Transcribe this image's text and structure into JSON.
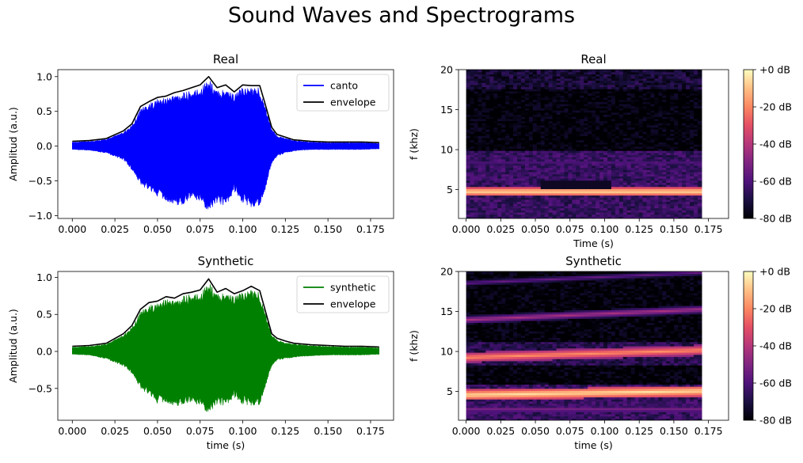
{
  "suptitle": "Sound Waves and Spectrograms",
  "colors": {
    "canto": "#0000ff",
    "synthetic": "#008000",
    "envelope": "#000000",
    "colormap": "magma"
  },
  "chart_data": [
    {
      "id": "wave_real",
      "type": "line",
      "title": "Real",
      "xlabel": "",
      "ylabel": "Amplitud (a.u.)",
      "xlim": [
        -0.0085,
        0.1885
      ],
      "ylim": [
        -1.04,
        1.1
      ],
      "xticks": [
        0.0,
        0.025,
        0.05,
        0.075,
        0.1,
        0.125,
        0.15,
        0.175
      ],
      "xtick_labels": [
        "0.000",
        "0.025",
        "0.050",
        "0.075",
        "0.100",
        "0.125",
        "0.150",
        "0.175"
      ],
      "yticks": [
        -1.0,
        -0.5,
        0.0,
        0.5,
        1.0
      ],
      "ytick_labels": [
        "−1.0",
        "−0.5",
        "0.0",
        "0.5",
        "1.0"
      ],
      "legend": {
        "placement": "upper right",
        "entries": [
          "canto",
          "envelope"
        ]
      },
      "series": [
        {
          "name": "canto",
          "kind": "fill_band",
          "color": "#0000ff",
          "x": [
            0.0,
            0.01,
            0.02,
            0.03,
            0.035,
            0.04,
            0.045,
            0.05,
            0.055,
            0.06,
            0.065,
            0.07,
            0.075,
            0.08,
            0.085,
            0.09,
            0.095,
            0.1,
            0.105,
            0.11,
            0.113,
            0.117,
            0.12,
            0.125,
            0.13,
            0.14,
            0.15,
            0.16,
            0.17,
            0.18
          ],
          "upper": [
            0.06,
            0.07,
            0.1,
            0.2,
            0.3,
            0.55,
            0.62,
            0.68,
            0.7,
            0.75,
            0.77,
            0.8,
            0.85,
            0.98,
            0.8,
            0.85,
            0.75,
            0.85,
            0.85,
            0.85,
            0.6,
            0.25,
            0.15,
            0.12,
            0.08,
            0.06,
            0.05,
            0.05,
            0.05,
            0.04
          ],
          "lower": [
            -0.05,
            -0.06,
            -0.1,
            -0.2,
            -0.35,
            -0.55,
            -0.65,
            -0.72,
            -0.78,
            -0.85,
            -0.85,
            -0.75,
            -0.82,
            -0.95,
            -0.82,
            -0.88,
            -0.65,
            -0.82,
            -0.9,
            -0.85,
            -0.65,
            -0.25,
            -0.15,
            -0.1,
            -0.07,
            -0.05,
            -0.05,
            -0.05,
            -0.05,
            -0.04
          ]
        },
        {
          "name": "envelope",
          "kind": "line",
          "color": "#000000",
          "x": [
            0.0,
            0.01,
            0.02,
            0.03,
            0.035,
            0.04,
            0.045,
            0.05,
            0.055,
            0.06,
            0.065,
            0.07,
            0.075,
            0.08,
            0.085,
            0.09,
            0.095,
            0.1,
            0.105,
            0.11,
            0.113,
            0.117,
            0.12,
            0.125,
            0.13,
            0.14,
            0.15,
            0.16,
            0.17,
            0.18
          ],
          "y": [
            0.07,
            0.08,
            0.11,
            0.22,
            0.32,
            0.57,
            0.64,
            0.7,
            0.72,
            0.77,
            0.8,
            0.84,
            0.88,
            1.0,
            0.84,
            0.88,
            0.78,
            0.88,
            0.87,
            0.87,
            0.62,
            0.27,
            0.17,
            0.13,
            0.09,
            0.07,
            0.06,
            0.06,
            0.06,
            0.05
          ]
        }
      ]
    },
    {
      "id": "wave_synth",
      "type": "line",
      "title": "Synthetic",
      "xlabel": "time (s)",
      "ylabel": "Amplitud (a.u.)",
      "xlim": [
        -0.0085,
        0.1885
      ],
      "ylim": [
        -0.93,
        1.08
      ],
      "xticks": [
        0.0,
        0.025,
        0.05,
        0.075,
        0.1,
        0.125,
        0.15,
        0.175
      ],
      "xtick_labels": [
        "0.000",
        "0.025",
        "0.050",
        "0.075",
        "0.100",
        "0.125",
        "0.150",
        "0.175"
      ],
      "yticks": [
        -0.5,
        0.0,
        0.5,
        1.0
      ],
      "ytick_labels": [
        "−0.5",
        "0.0",
        "0.5",
        "1.0"
      ],
      "legend": {
        "placement": "upper right",
        "entries": [
          "synthetic",
          "envelope"
        ]
      },
      "series": [
        {
          "name": "synthetic",
          "kind": "fill_band",
          "color": "#008000",
          "x": [
            0.0,
            0.01,
            0.02,
            0.03,
            0.035,
            0.04,
            0.045,
            0.05,
            0.055,
            0.06,
            0.065,
            0.07,
            0.075,
            0.08,
            0.085,
            0.09,
            0.095,
            0.1,
            0.105,
            0.11,
            0.113,
            0.117,
            0.12,
            0.125,
            0.13,
            0.14,
            0.15,
            0.16,
            0.17,
            0.18
          ],
          "upper": [
            0.06,
            0.07,
            0.1,
            0.22,
            0.33,
            0.55,
            0.63,
            0.65,
            0.72,
            0.7,
            0.75,
            0.78,
            0.8,
            0.95,
            0.78,
            0.82,
            0.75,
            0.8,
            0.85,
            0.8,
            0.55,
            0.22,
            0.16,
            0.12,
            0.1,
            0.08,
            0.07,
            0.06,
            0.06,
            0.05
          ],
          "lower": [
            -0.04,
            -0.05,
            -0.1,
            -0.2,
            -0.3,
            -0.5,
            -0.6,
            -0.7,
            -0.68,
            -0.75,
            -0.72,
            -0.7,
            -0.75,
            -0.85,
            -0.72,
            -0.75,
            -0.62,
            -0.72,
            -0.75,
            -0.72,
            -0.5,
            -0.2,
            -0.12,
            -0.1,
            -0.08,
            -0.06,
            -0.05,
            -0.05,
            -0.05,
            -0.04
          ]
        },
        {
          "name": "envelope",
          "kind": "line",
          "color": "#000000",
          "x": [
            0.0,
            0.01,
            0.02,
            0.03,
            0.035,
            0.04,
            0.045,
            0.05,
            0.055,
            0.06,
            0.065,
            0.07,
            0.075,
            0.08,
            0.085,
            0.09,
            0.095,
            0.1,
            0.105,
            0.11,
            0.113,
            0.117,
            0.12,
            0.125,
            0.13,
            0.14,
            0.15,
            0.16,
            0.17,
            0.18
          ],
          "y": [
            0.07,
            0.08,
            0.11,
            0.24,
            0.35,
            0.57,
            0.66,
            0.68,
            0.74,
            0.72,
            0.78,
            0.8,
            0.83,
            0.98,
            0.8,
            0.85,
            0.78,
            0.82,
            0.88,
            0.82,
            0.57,
            0.24,
            0.18,
            0.14,
            0.11,
            0.09,
            0.08,
            0.07,
            0.07,
            0.06
          ]
        }
      ]
    },
    {
      "id": "spec_real",
      "type": "heatmap",
      "title": "Real",
      "xlabel": "Time (s)",
      "ylabel": "f (khz)",
      "xlim": [
        -0.0055,
        0.1895
      ],
      "ylim": [
        1.4,
        20
      ],
      "data_x_extent": [
        0.0,
        0.17
      ],
      "xticks": [
        0.0,
        0.025,
        0.05,
        0.075,
        0.1,
        0.125,
        0.15,
        0.175
      ],
      "xtick_labels": [
        "0.000",
        "0.025",
        "0.050",
        "0.075",
        "0.100",
        "0.125",
        "0.150",
        "0.175"
      ],
      "yticks": [
        5,
        10,
        15,
        20
      ],
      "ytick_labels": [
        "5",
        "10",
        "15",
        "20"
      ],
      "db_range": [
        -80,
        0
      ],
      "bands": [
        {
          "f0": 4.8,
          "f1": 4.8,
          "level_db": -5,
          "width_khz": 0.25
        },
        {
          "f0": 8.4,
          "f1": 8.4,
          "level_db": -60,
          "width_khz": 0.4
        }
      ],
      "regions": [
        {
          "f_min": 1.4,
          "f_max": 10.0,
          "level_db": -65
        },
        {
          "f_min": 10.0,
          "f_max": 20.0,
          "level_db": -80
        },
        {
          "f_min": 17.5,
          "f_max": 20.0,
          "level_db": -72
        }
      ],
      "dark_patch": {
        "t0": 0.055,
        "t1": 0.105,
        "f_min": 5.2,
        "f_max": 6.3
      }
    },
    {
      "id": "spec_synth",
      "type": "heatmap",
      "title": "Synthetic",
      "xlabel": "time (s)",
      "ylabel": "f (khz)",
      "xlim": [
        -0.0055,
        0.1895
      ],
      "ylim": [
        1.4,
        20
      ],
      "data_x_extent": [
        0.0,
        0.17
      ],
      "xticks": [
        0.0,
        0.025,
        0.05,
        0.075,
        0.1,
        0.125,
        0.15,
        0.175
      ],
      "xtick_labels": [
        "0.000",
        "0.025",
        "0.050",
        "0.075",
        "0.100",
        "0.125",
        "0.150",
        "0.175"
      ],
      "yticks": [
        5,
        10,
        15,
        20
      ],
      "ytick_labels": [
        "5",
        "10",
        "15",
        "20"
      ],
      "db_range": [
        -80,
        0
      ],
      "bands": [
        {
          "f0": 4.6,
          "f1": 5.1,
          "level_db": -5,
          "width_khz": 0.3
        },
        {
          "f0": 9.3,
          "f1": 10.2,
          "level_db": -18,
          "width_khz": 0.3
        },
        {
          "f0": 14.0,
          "f1": 15.3,
          "level_db": -42,
          "width_khz": 0.25
        },
        {
          "f0": 18.6,
          "f1": 19.9,
          "level_db": -55,
          "width_khz": 0.25
        },
        {
          "f0": 2.8,
          "f1": 2.8,
          "level_db": -50,
          "width_khz": 0.3
        }
      ],
      "regions": [
        {
          "f_min": 1.4,
          "f_max": 6.0,
          "level_db": -65
        },
        {
          "f_min": 8.2,
          "f_max": 11.2,
          "level_db": -68
        },
        {
          "f_min": 6.0,
          "f_max": 8.2,
          "level_db": -80
        },
        {
          "f_min": 11.2,
          "f_max": 20.0,
          "level_db": -80
        }
      ]
    }
  ],
  "colorbars": [
    {
      "id": "cbar_real",
      "ticks": [
        0,
        -20,
        -40,
        -60,
        -80
      ],
      "tick_labels": [
        "+0 dB",
        "-20 dB",
        "-40 dB",
        "-60 dB",
        "-80 dB"
      ]
    },
    {
      "id": "cbar_synth",
      "ticks": [
        0,
        -20,
        -40,
        -60,
        -80
      ],
      "tick_labels": [
        "+0 dB",
        "-20 dB",
        "-40 dB",
        "-60 dB",
        "-80 dB"
      ]
    }
  ]
}
